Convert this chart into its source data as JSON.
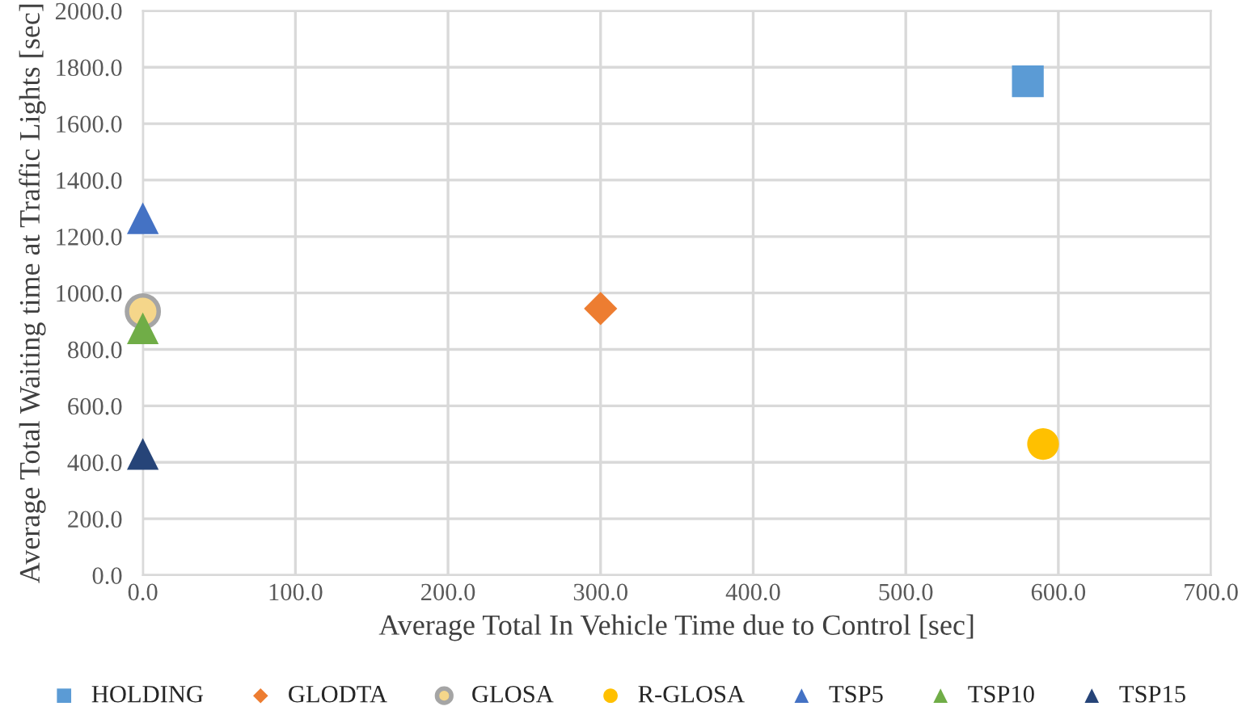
{
  "chart_data": {
    "type": "scatter",
    "xlabel": "Average Total In Vehicle Time due to Control [sec]",
    "ylabel": "Average Total Waiting time at Traffic Lights [sec]",
    "xlim": [
      0,
      700
    ],
    "xticks": [
      {
        "value": 0,
        "label": "0.0"
      },
      {
        "value": 100,
        "label": "100.0"
      },
      {
        "value": 200,
        "label": "200.0"
      },
      {
        "value": 300,
        "label": "300.0"
      },
      {
        "value": 400,
        "label": "400.0"
      },
      {
        "value": 500,
        "label": "500.0"
      },
      {
        "value": 600,
        "label": "600.0"
      },
      {
        "value": 700,
        "label": "700.0"
      }
    ],
    "ylim": [
      0,
      2000
    ],
    "yticks": [
      {
        "value": 0,
        "label": "0.0"
      },
      {
        "value": 200,
        "label": "200.0"
      },
      {
        "value": 400,
        "label": "400.0"
      },
      {
        "value": 600,
        "label": "600.0"
      },
      {
        "value": 800,
        "label": "800.0"
      },
      {
        "value": 1000,
        "label": "1000.0"
      },
      {
        "value": 1200,
        "label": "1200.0"
      },
      {
        "value": 1400,
        "label": "1400.0"
      },
      {
        "value": 1600,
        "label": "1600.0"
      },
      {
        "value": 1800,
        "label": "1800.0"
      },
      {
        "value": 2000,
        "label": "2000.0"
      }
    ],
    "grid": true,
    "legend": "bottom",
    "series": [
      {
        "name": "HOLDING",
        "color": "#5b9bd5",
        "marker": "square",
        "x": [
          580
        ],
        "values": [
          1750
        ]
      },
      {
        "name": "GLODTA",
        "color": "#ed7d31",
        "marker": "diamond",
        "x": [
          300
        ],
        "values": [
          945
        ]
      },
      {
        "name": "GLOSA",
        "color": "#f5d68a",
        "marker": "circle",
        "x": [
          0
        ],
        "values": [
          935
        ]
      },
      {
        "name": "R-GLOSA",
        "color": "#ffc000",
        "marker": "circle",
        "x": [
          590
        ],
        "values": [
          465
        ]
      },
      {
        "name": "TSP5",
        "color": "#4472c4",
        "marker": "triangle",
        "x": [
          0
        ],
        "values": [
          1265
        ]
      },
      {
        "name": "TSP10",
        "color": "#70ad47",
        "marker": "triangle",
        "x": [
          0
        ],
        "values": [
          875
        ]
      },
      {
        "name": "TSP15",
        "color": "#264478",
        "marker": "triangle",
        "x": [
          0
        ],
        "values": [
          430
        ]
      }
    ]
  }
}
